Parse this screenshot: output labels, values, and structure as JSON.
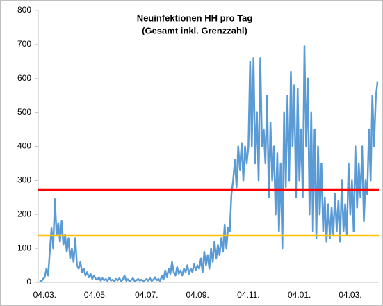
{
  "chart_data": {
    "type": "line",
    "title": "Neuinfektionen HH pro Tag",
    "subtitle": "(Gesamt inkl. Grenzzahl)",
    "categories": [
      null,
      null,
      null,
      "04.03.",
      null,
      null,
      null,
      null,
      null,
      null,
      null,
      null,
      null,
      null,
      null,
      null,
      null,
      null,
      null,
      null,
      null,
      null,
      null,
      null,
      null,
      null,
      null,
      null,
      null,
      null,
      null,
      null,
      null,
      "04.05.",
      null,
      null,
      null,
      null,
      null,
      null,
      null,
      null,
      null,
      null,
      null,
      null,
      null,
      null,
      null,
      null,
      null,
      null,
      null,
      null,
      null,
      null,
      null,
      null,
      null,
      null,
      null,
      null,
      null,
      "04.07.",
      null,
      null,
      null,
      null,
      null,
      null,
      null,
      null,
      null,
      null,
      null,
      null,
      null,
      null,
      null,
      null,
      null,
      null,
      null,
      null,
      null,
      null,
      null,
      null,
      null,
      null,
      null,
      null,
      null,
      "04.09.",
      null,
      null,
      null,
      null,
      null,
      null,
      null,
      null,
      null,
      null,
      null,
      null,
      null,
      null,
      null,
      null,
      null,
      null,
      null,
      null,
      null,
      null,
      null,
      null,
      null,
      null,
      null,
      null,
      null,
      "04.11.",
      null,
      null,
      null,
      null,
      null,
      null,
      null,
      null,
      null,
      null,
      null,
      null,
      null,
      null,
      null,
      null,
      null,
      null,
      null,
      null,
      null,
      null,
      null,
      null,
      null,
      null,
      null,
      null,
      null,
      "04.01.",
      null,
      null,
      null,
      null,
      null,
      null,
      null,
      null,
      null,
      null,
      null,
      null,
      null,
      null,
      null,
      null,
      null,
      null,
      null,
      null,
      null,
      null,
      null,
      null,
      null,
      null,
      null,
      null,
      null,
      "04.03.",
      null,
      null,
      null,
      null,
      null,
      null,
      null,
      null,
      null,
      null,
      null,
      null,
      null,
      null,
      null,
      null
    ],
    "series": [
      {
        "name": "Neuinfektionen",
        "color": "#5b9bd5",
        "values": [
          5,
          3,
          10,
          15,
          40,
          20,
          90,
          160,
          100,
          245,
          140,
          175,
          120,
          180,
          110,
          140,
          90,
          130,
          70,
          100,
          60,
          130,
          50,
          40,
          60,
          30,
          40,
          20,
          30,
          15,
          25,
          10,
          20,
          10,
          8,
          15,
          5,
          12,
          6,
          10,
          4,
          14,
          5,
          8,
          3,
          10,
          6,
          12,
          4,
          8,
          20,
          5,
          9,
          3,
          7,
          12,
          4,
          6,
          10,
          5,
          8,
          3,
          6,
          10,
          5,
          12,
          4,
          8,
          15,
          6,
          10,
          3,
          20,
          8,
          35,
          15,
          40,
          25,
          60,
          30,
          20,
          45,
          25,
          35,
          20,
          40,
          30,
          50,
          25,
          40,
          30,
          55,
          35,
          50,
          40,
          70,
          30,
          90,
          50,
          80,
          40,
          100,
          60,
          120,
          70,
          110,
          80,
          130,
          90,
          170,
          100,
          160,
          150,
          260,
          300,
          360,
          280,
          400,
          330,
          410,
          300,
          400,
          350,
          400,
          650,
          400,
          660,
          350,
          500,
          300,
          660,
          400,
          450,
          350,
          550,
          250,
          470,
          300,
          400,
          200,
          380,
          150,
          350,
          100,
          500,
          280,
          550,
          300,
          620,
          400,
          580,
          250,
          570,
          300,
          450,
          250,
          695,
          400,
          600,
          200,
          500,
          150,
          450,
          130,
          400,
          200,
          350,
          150,
          250,
          120,
          230,
          130,
          220,
          140,
          260,
          150,
          240,
          120,
          300,
          150,
          230,
          140,
          350,
          200,
          300,
          150,
          400,
          220,
          350,
          250,
          400,
          180,
          300,
          260,
          450,
          300,
          550,
          400,
          540,
          590
        ]
      }
    ],
    "hlines": [
      {
        "value": 272,
        "color": "#ff0000"
      },
      {
        "value": 137,
        "color": "#ffc000"
      }
    ],
    "ylim": [
      0,
      800
    ],
    "yticks": [
      0,
      100,
      200,
      300,
      400,
      500,
      600,
      700,
      800
    ]
  }
}
